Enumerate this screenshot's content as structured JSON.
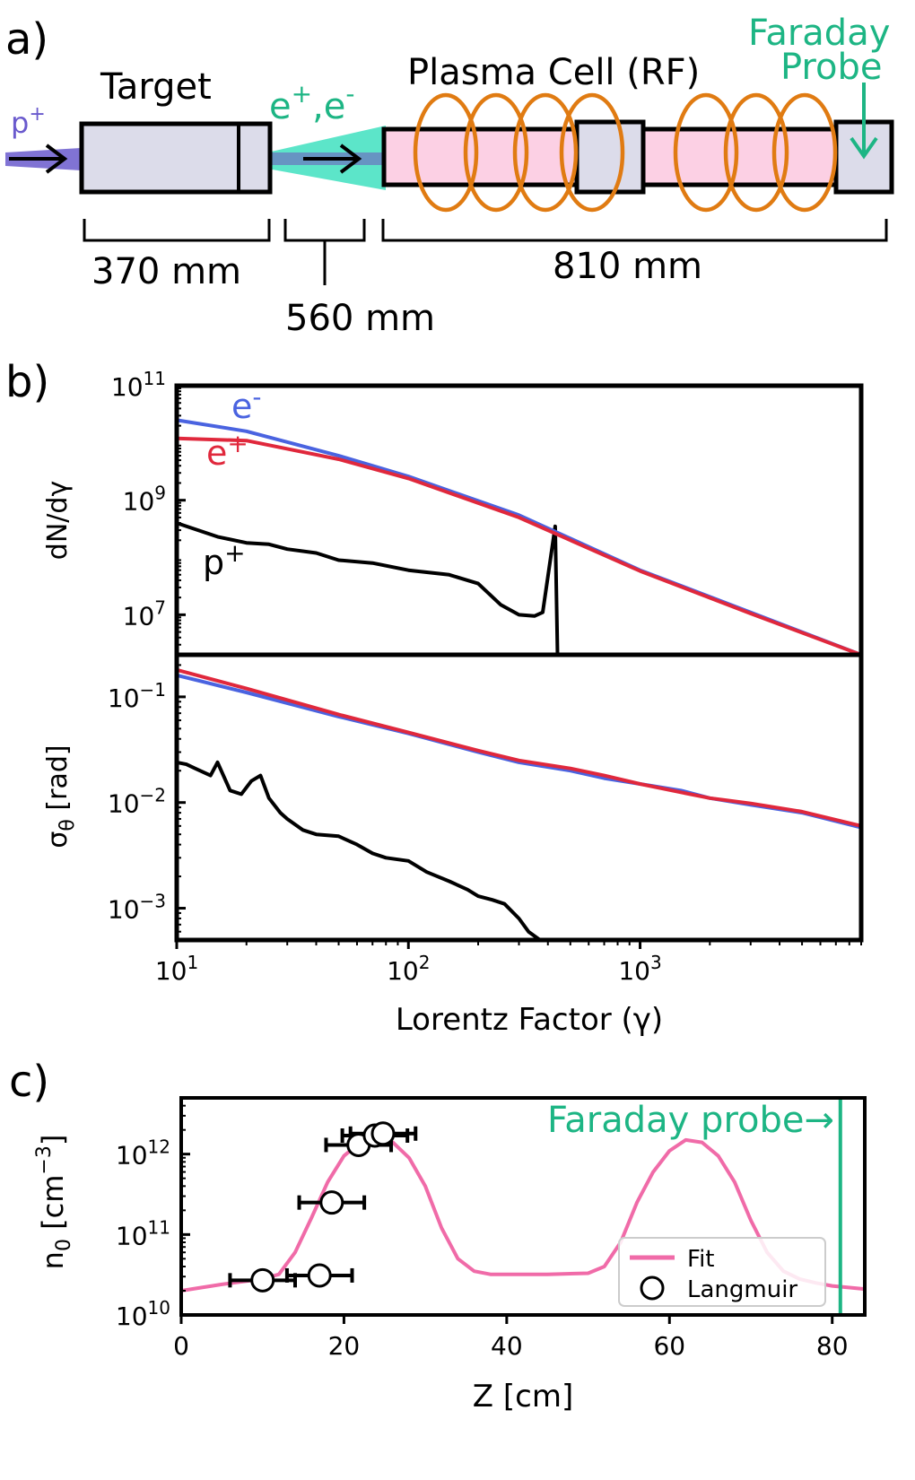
{
  "panel_a": {
    "label": "a)",
    "target_label": "Target",
    "proton_label": "p",
    "proton_sup": "+",
    "pair_e_plus": "e",
    "pair_e_plus_sup": "+",
    "pair_sep": ",e",
    "pair_e_minus_sup": "-",
    "plasma_label": "Plasma Cell (RF)",
    "faraday_line1": "Faraday",
    "faraday_line2": "Probe",
    "dim_target": "370 mm",
    "dim_gap": "560 mm",
    "dim_cell": "810 mm",
    "colors": {
      "proton": "#6a5acd",
      "pairs": "#40e0c0",
      "box": "#dcdcea",
      "cell": "#fcd0e4",
      "coil": "#e07b12",
      "faraday": "#1db584"
    }
  },
  "panel_b": {
    "label": "b)",
    "xlabel": "Lorentz Factor (γ)"
  },
  "panel_c": {
    "label": "c)",
    "faraday_text": "Faraday probe→",
    "legend_fit": "Fit",
    "legend_langmuir": "Langmuir"
  },
  "chart_data": [
    {
      "type": "line",
      "x_scale": "log",
      "y_scale": "log",
      "xlim": [
        10,
        9000
      ],
      "ylim": [
        2000000,
        100000000000
      ],
      "ylabel": "dN/dγ",
      "yticks": [
        {
          "base": "10",
          "exp": "11",
          "value": 100000000000
        },
        {
          "base": "10",
          "exp": "9",
          "value": 1000000000
        },
        {
          "base": "10",
          "exp": "7",
          "value": 10000000
        }
      ],
      "series": [
        {
          "name": "e-",
          "label_base": "e",
          "label_sup": "-",
          "color": "#4a63e0",
          "x": [
            10,
            20,
            50,
            100,
            300,
            1000,
            3000,
            9000
          ],
          "y": [
            25000000000,
            16000000000,
            6000000000,
            2600000000,
            550000000,
            60000000,
            11000000,
            2000000
          ]
        },
        {
          "name": "e+",
          "label_base": "e",
          "label_sup": "+",
          "color": "#e0283c",
          "x": [
            10,
            20,
            50,
            100,
            300,
            1000,
            3000,
            9000
          ],
          "y": [
            12000000000,
            11000000000,
            5200000000,
            2400000000,
            500000000,
            58000000,
            10500000,
            2000000
          ]
        },
        {
          "name": "p+",
          "label_base": "p",
          "label_sup": "+",
          "color": "#000000",
          "x": [
            10,
            15,
            20,
            25,
            30,
            40,
            50,
            70,
            100,
            150,
            200,
            250,
            300,
            350,
            380,
            430,
            440
          ],
          "y": [
            400000000,
            230000000,
            180000000,
            170000000,
            140000000,
            120000000,
            90000000,
            80000000,
            60000000,
            50000000,
            35000000,
            15000000,
            10000000,
            9500000,
            11000000,
            350000000,
            2000000
          ]
        }
      ]
    },
    {
      "type": "line",
      "x_scale": "log",
      "y_scale": "log",
      "xlim": [
        10,
        9000
      ],
      "ylim": [
        0.0005,
        0.25
      ],
      "ylabel": "σθ [rad]",
      "ylabel_base": "σ",
      "ylabel_sub": "θ",
      "ylabel_rest": " [rad]",
      "xticks": [
        {
          "base": "10",
          "exp": "1",
          "value": 10
        },
        {
          "base": "10",
          "exp": "2",
          "value": 100
        },
        {
          "base": "10",
          "exp": "3",
          "value": 1000
        }
      ],
      "yticks": [
        {
          "base": "10",
          "exp": "−1",
          "value": 0.1
        },
        {
          "base": "10",
          "exp": "−2",
          "value": 0.01
        },
        {
          "base": "10",
          "exp": "−3",
          "value": 0.001
        }
      ],
      "series": [
        {
          "name": "e-",
          "color": "#4a63e0",
          "x": [
            10,
            20,
            50,
            100,
            200,
            300,
            500,
            700,
            1000,
            1500,
            2000,
            3000,
            5000,
            9000
          ],
          "y": [
            0.16,
            0.11,
            0.065,
            0.045,
            0.03,
            0.024,
            0.02,
            0.017,
            0.015,
            0.013,
            0.011,
            0.0095,
            0.008,
            0.0058
          ]
        },
        {
          "name": "e+",
          "color": "#e0283c",
          "x": [
            10,
            20,
            50,
            100,
            200,
            300,
            500,
            700,
            1000,
            1500,
            2000,
            3000,
            5000,
            9000
          ],
          "y": [
            0.18,
            0.12,
            0.068,
            0.046,
            0.031,
            0.025,
            0.021,
            0.018,
            0.015,
            0.0125,
            0.011,
            0.0098,
            0.0082,
            0.006
          ]
        },
        {
          "name": "p+",
          "color": "#000000",
          "x": [
            10,
            11,
            12,
            14,
            15,
            17,
            19,
            21,
            23,
            25,
            28,
            30,
            35,
            40,
            50,
            60,
            70,
            80,
            100,
            120,
            150,
            180,
            200,
            230,
            260,
            300,
            330,
            370
          ],
          "y": [
            0.024,
            0.023,
            0.021,
            0.018,
            0.024,
            0.013,
            0.012,
            0.016,
            0.018,
            0.011,
            0.008,
            0.007,
            0.0055,
            0.005,
            0.0048,
            0.004,
            0.0033,
            0.003,
            0.0028,
            0.0022,
            0.0018,
            0.0015,
            0.0013,
            0.0012,
            0.0011,
            0.0008,
            0.0006,
            0.0005
          ]
        }
      ]
    },
    {
      "type": "scatter",
      "x_scale": "linear",
      "y_scale": "log",
      "xlim": [
        0,
        84
      ],
      "ylim": [
        10000000000,
        5000000000000
      ],
      "xlabel": "Z [cm]",
      "ylabel": "n₀ [cm⁻³]",
      "ylabel_base": "n",
      "ylabel_sub": "0",
      "ylabel_rest": " [cm",
      "ylabel_sup": "−3",
      "ylabel_close": "]",
      "xticks": [
        0,
        20,
        40,
        60,
        80
      ],
      "yticks": [
        {
          "base": "10",
          "exp": "12",
          "value": 1000000000000
        },
        {
          "base": "10",
          "exp": "11",
          "value": 100000000000
        },
        {
          "base": "10",
          "exp": "10",
          "value": 10000000000
        }
      ],
      "faraday_probe_z": 81,
      "series": [
        {
          "name": "Fit",
          "color": "#f06ba8",
          "x": [
            0,
            5,
            10,
            12,
            14,
            16,
            18,
            20,
            22,
            24,
            26,
            28,
            30,
            32,
            34,
            36,
            38,
            40,
            45,
            50,
            52,
            54,
            56,
            58,
            60,
            62,
            64,
            66,
            68,
            70,
            72,
            74,
            76,
            78,
            80,
            84
          ],
          "y": [
            20000000000,
            24000000000,
            28000000000,
            32000000000,
            60000000000,
            160000000000,
            450000000000,
            950000000000,
            1400000000000,
            1600000000000,
            1400000000000,
            900000000000,
            400000000000,
            120000000000,
            50000000000,
            35000000000,
            32000000000,
            32000000000,
            32000000000,
            33000000000,
            40000000000,
            80000000000,
            250000000000,
            600000000000,
            1100000000000,
            1500000000000,
            1400000000000,
            950000000000,
            450000000000,
            150000000000,
            60000000000,
            35000000000,
            28000000000,
            25000000000,
            23000000000,
            21000000000
          ]
        },
        {
          "name": "Langmuir",
          "color": "#000000",
          "points": [
            {
              "z": 10,
              "n": 27000000000,
              "zerr": 4
            },
            {
              "z": 17,
              "n": 31000000000,
              "zerr": 4
            },
            {
              "z": 18.5,
              "n": 250000000000,
              "zerr": 4
            },
            {
              "z": 21.8,
              "n": 1300000000000,
              "zerr": 4
            },
            {
              "z": 23.8,
              "n": 1700000000000,
              "zerr": 4
            },
            {
              "z": 24.8,
              "n": 1800000000000,
              "zerr": 4
            }
          ]
        }
      ]
    }
  ]
}
